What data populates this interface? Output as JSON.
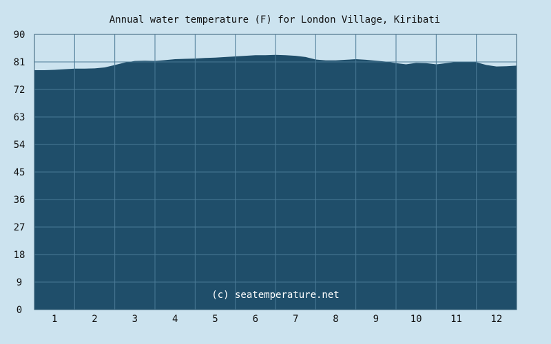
{
  "chart_data": {
    "type": "area",
    "title": "Annual water temperature (F) for London Village, Kiribati",
    "credit": "(c) seatemperature.net",
    "xlabel": "",
    "ylabel": "",
    "ylim": [
      0,
      90
    ],
    "y_ticks": [
      "0",
      "9",
      "18",
      "27",
      "36",
      "45",
      "54",
      "63",
      "72",
      "81",
      "90"
    ],
    "x_ticks": [
      "1",
      "2",
      "3",
      "4",
      "5",
      "6",
      "7",
      "8",
      "9",
      "10",
      "11",
      "12"
    ],
    "xlim": [
      0.5,
      12.5
    ],
    "grid": true,
    "legend": "none",
    "colors": {
      "area": "#1f4e6a",
      "background": "#cce3ef",
      "grid": "#4a7a96",
      "frame": "#355d75"
    },
    "series": [
      {
        "values": [
          [
            0.5,
            78.3
          ],
          [
            0.75,
            78.3
          ],
          [
            1.0,
            78.4
          ],
          [
            1.25,
            78.6
          ],
          [
            1.5,
            78.8
          ],
          [
            1.75,
            78.8
          ],
          [
            2.0,
            78.9
          ],
          [
            2.25,
            79.2
          ],
          [
            2.5,
            80.0
          ],
          [
            2.75,
            80.8
          ],
          [
            3.0,
            81.3
          ],
          [
            3.25,
            81.4
          ],
          [
            3.5,
            81.3
          ],
          [
            3.75,
            81.6
          ],
          [
            4.0,
            81.9
          ],
          [
            4.25,
            82.0
          ],
          [
            4.5,
            82.1
          ],
          [
            4.75,
            82.3
          ],
          [
            5.0,
            82.4
          ],
          [
            5.25,
            82.6
          ],
          [
            5.5,
            82.8
          ],
          [
            5.75,
            83.0
          ],
          [
            6.0,
            83.2
          ],
          [
            6.25,
            83.2
          ],
          [
            6.5,
            83.3
          ],
          [
            6.75,
            83.2
          ],
          [
            7.0,
            83.0
          ],
          [
            7.25,
            82.6
          ],
          [
            7.5,
            81.8
          ],
          [
            7.75,
            81.5
          ],
          [
            8.0,
            81.5
          ],
          [
            8.25,
            81.7
          ],
          [
            8.5,
            81.9
          ],
          [
            8.75,
            81.7
          ],
          [
            9.0,
            81.4
          ],
          [
            9.25,
            81.1
          ],
          [
            9.5,
            80.6
          ],
          [
            9.75,
            80.2
          ],
          [
            10.0,
            80.7
          ],
          [
            10.25,
            80.6
          ],
          [
            10.5,
            80.2
          ],
          [
            10.75,
            80.6
          ],
          [
            11.0,
            81.0
          ],
          [
            11.25,
            81.1
          ],
          [
            11.5,
            80.9
          ],
          [
            11.75,
            80.0
          ],
          [
            12.0,
            79.5
          ],
          [
            12.25,
            79.6
          ],
          [
            12.5,
            79.8
          ]
        ]
      }
    ]
  }
}
